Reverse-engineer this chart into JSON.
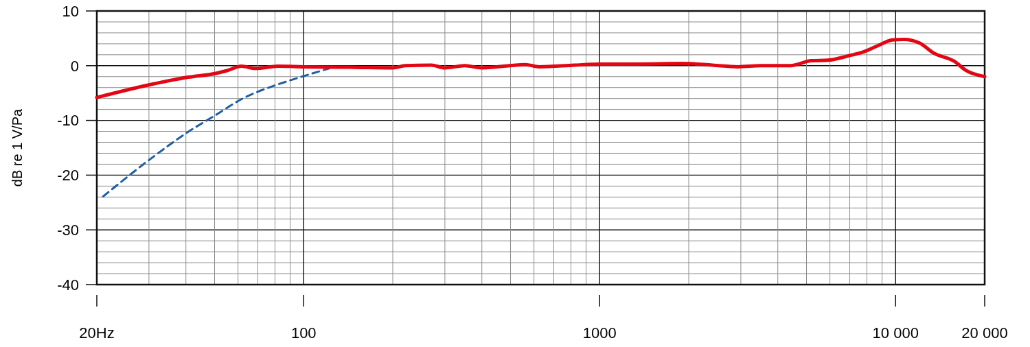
{
  "chart_data": {
    "type": "line",
    "ylabel": "dB re 1 V/Pa",
    "log": "x",
    "grid": true,
    "marker": "none",
    "xlim": [
      20,
      20000
    ],
    "ylim": [
      -40,
      10
    ],
    "xticks": [
      {
        "value": 20,
        "label": "20Hz"
      },
      {
        "value": 30,
        "label": null
      },
      {
        "value": 40,
        "label": null
      },
      {
        "value": 50,
        "label": null
      },
      {
        "value": 60,
        "label": null
      },
      {
        "value": 70,
        "label": null
      },
      {
        "value": 80,
        "label": null
      },
      {
        "value": 90,
        "label": null
      },
      100,
      {
        "value": 200,
        "label": null
      },
      {
        "value": 300,
        "label": null
      },
      {
        "value": 400,
        "label": null
      },
      {
        "value": 500,
        "label": null
      },
      {
        "value": 600,
        "label": null
      },
      {
        "value": 700,
        "label": null
      },
      {
        "value": 800,
        "label": null
      },
      {
        "value": 900,
        "label": null
      },
      1000,
      {
        "value": 2000,
        "label": null
      },
      {
        "value": 3000,
        "label": null
      },
      {
        "value": 4000,
        "label": null
      },
      {
        "value": 5000,
        "label": null
      },
      {
        "value": 6000,
        "label": null
      },
      {
        "value": 7000,
        "label": null
      },
      {
        "value": 8000,
        "label": null
      },
      {
        "value": 9000,
        "label": null
      },
      {
        "value": 10000,
        "label": "10 000"
      },
      {
        "value": 20000,
        "label": "20 000"
      }
    ],
    "yticks": [
      -40,
      {
        "value": -38,
        "label": null
      },
      {
        "value": -36,
        "label": null
      },
      {
        "value": -34,
        "label": null
      },
      {
        "value": -32,
        "label": null
      },
      -30,
      {
        "value": -28,
        "label": null
      },
      {
        "value": -26,
        "label": null
      },
      {
        "value": -24,
        "label": null
      },
      {
        "value": -22,
        "label": null
      },
      -20,
      {
        "value": -18,
        "label": null
      },
      {
        "value": -16,
        "label": null
      },
      {
        "value": -14,
        "label": null
      },
      {
        "value": -12,
        "label": null
      },
      -10,
      {
        "value": -8,
        "label": null
      },
      {
        "value": -6,
        "label": null
      },
      {
        "value": -4,
        "label": null
      },
      {
        "value": -2,
        "label": null
      },
      0,
      {
        "value": 2,
        "label": null
      },
      {
        "value": 4,
        "label": null
      },
      {
        "value": 6,
        "label": null
      },
      {
        "value": 8,
        "label": null
      },
      10
    ],
    "series": [
      {
        "color": "#1f5fa6",
        "line_style": "dashed",
        "x": [
          21,
          30.6,
          40.7,
          50.5,
          61.7,
          82,
          100,
          122
        ],
        "values": [
          -23.9,
          -16.9,
          -12.1,
          -9.0,
          -6.1,
          -3.4,
          -1.9,
          -0.5
        ]
      },
      {
        "color": "#e30613",
        "line_style": "solid",
        "x": [
          20,
          30.6,
          40.7,
          50.5,
          55,
          61.7,
          68.7,
          82,
          100,
          150,
          200,
          220,
          270,
          300,
          350,
          400,
          561,
          625,
          819,
          1000,
          1327,
          1905,
          2404,
          2933,
          3500,
          4413,
          5190,
          5900,
          6930,
          7850,
          8750,
          9740,
          10660,
          12080,
          13450,
          15800,
          17330,
          20000
        ],
        "values": [
          -5.8,
          -3.4,
          -2.1,
          -1.4,
          -0.9,
          -0.1,
          -0.5,
          -0.1,
          -0.2,
          -0.3,
          -0.4,
          0,
          0.1,
          -0.4,
          0,
          -0.4,
          0.2,
          -0.2,
          0.1,
          0.3,
          0.3,
          0.4,
          0.1,
          -0.2,
          0,
          0,
          0.9,
          1.0,
          1.8,
          2.6,
          3.7,
          4.7,
          4.8,
          4.1,
          2.3,
          0.8,
          -0.9,
          -2.0
        ]
      }
    ]
  }
}
